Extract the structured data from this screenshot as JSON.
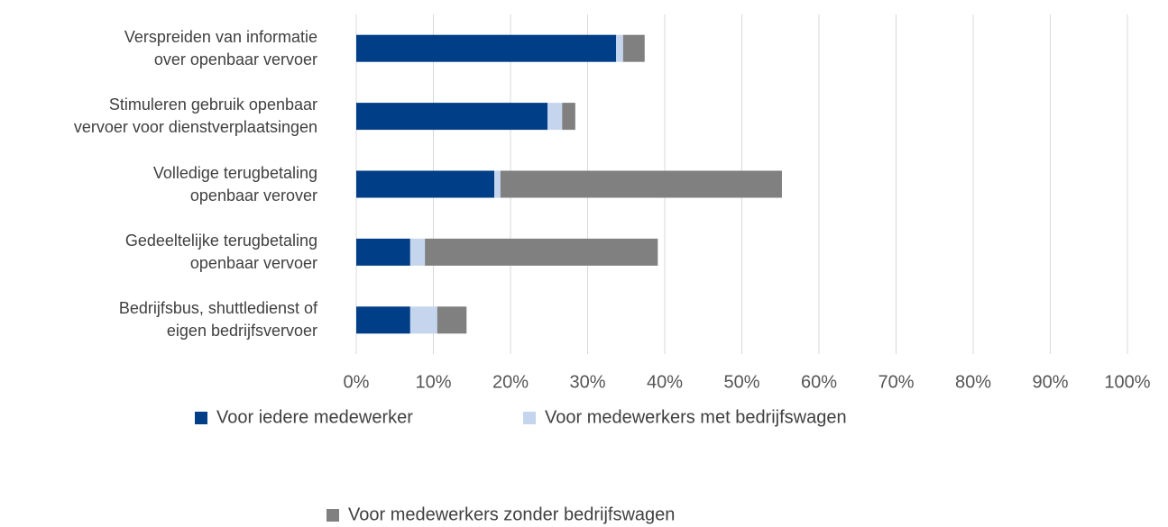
{
  "chart_data": {
    "type": "stacked-bar-horizontal",
    "categories": [
      "Verspreiden van informatie\nover openbaar vervoer",
      "Stimuleren gebruik openbaar\nvervoer voor dienstverplaatsingen",
      "Volledige terugbetaling\nopenbaar verover",
      "Gedeeltelijke terugbetaling\nopenbaar vervoer",
      "Bedrijfsbus, shuttledienst of\neigen bedrijfsvervoer"
    ],
    "series": [
      {
        "name": "Voor iedere medewerker",
        "color": "#003f87",
        "values": [
          33.7,
          24.8,
          17.9,
          7.0,
          7.0
        ]
      },
      {
        "name": "Voor medewerkers met bedrijfswagen",
        "color": "#c5d5ee",
        "values": [
          0.9,
          1.9,
          0.8,
          1.9,
          3.5
        ]
      },
      {
        "name": "Voor medewerkers zonder bedrijfswagen",
        "color": "#808080",
        "values": [
          2.8,
          1.7,
          36.5,
          30.2,
          3.8
        ]
      }
    ],
    "xlim": [
      0,
      100
    ],
    "xticks": [
      {
        "value": 0,
        "label": "0%"
      },
      {
        "value": 10,
        "label": "10%"
      },
      {
        "value": 20,
        "label": "20%"
      },
      {
        "value": 30,
        "label": "30%"
      },
      {
        "value": 40,
        "label": "40%"
      },
      {
        "value": 50,
        "label": "50%"
      },
      {
        "value": 60,
        "label": "60%"
      },
      {
        "value": 70,
        "label": "70%"
      },
      {
        "value": 80,
        "label": "80%"
      },
      {
        "value": 90,
        "label": "90%"
      },
      {
        "value": 100,
        "label": "100%"
      }
    ],
    "grid": true
  }
}
